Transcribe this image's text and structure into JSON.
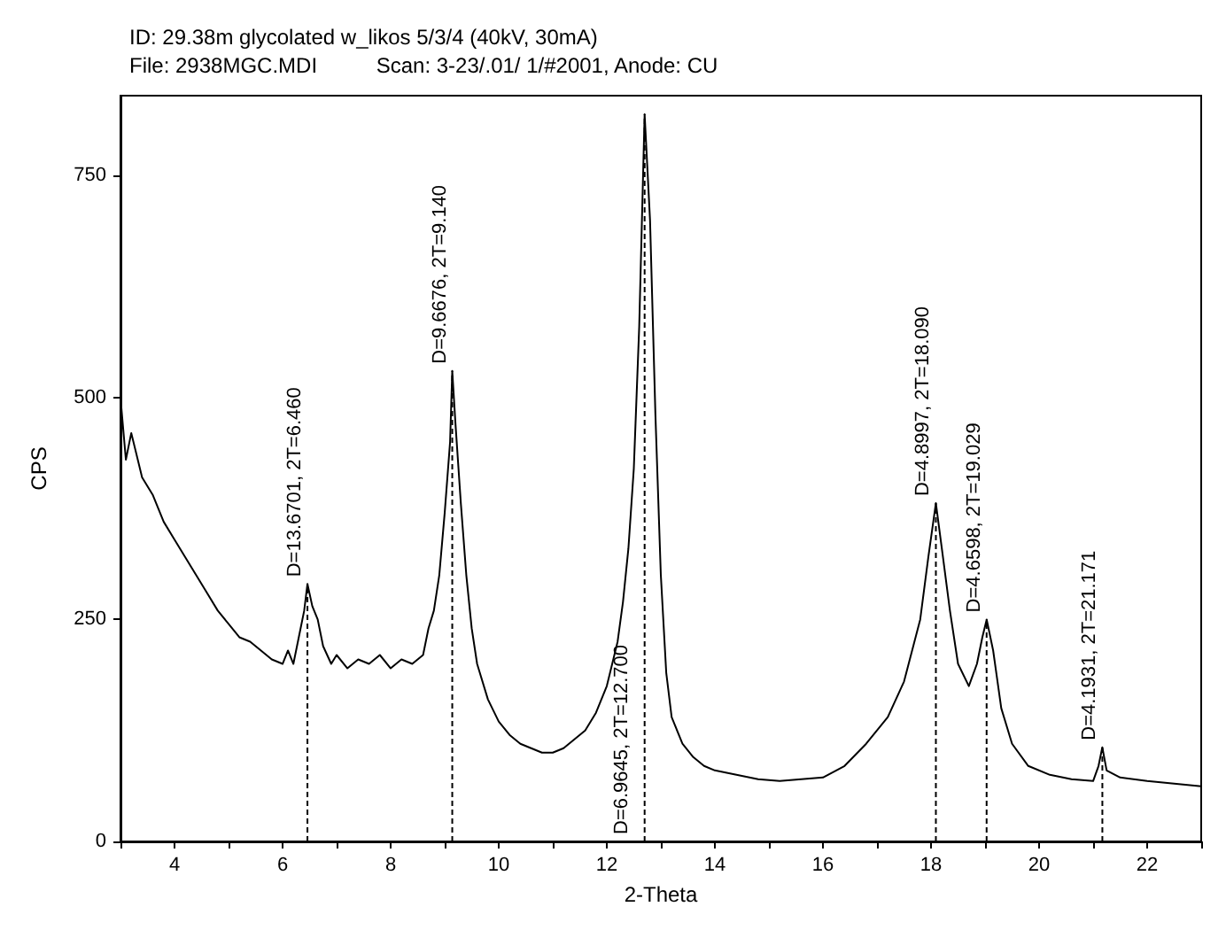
{
  "chart_data": {
    "type": "line",
    "title": "ID: 29.38m glycolated w_likos 5/3/4 (40kV, 30mA)",
    "subtitle": "File: 2938MGC.MDI          Scan: 3-23/.01/ 1/#2001, Anode: CU",
    "xlabel": "2-Theta",
    "ylabel": "CPS",
    "xlim": [
      3,
      23
    ],
    "ylim": [
      0,
      840
    ],
    "xticks": [
      {
        "value": 3,
        "label": null
      },
      4,
      {
        "value": 5,
        "label": null
      },
      6,
      {
        "value": 7,
        "label": null
      },
      8,
      {
        "value": 9,
        "label": null
      },
      10,
      {
        "value": 11,
        "label": null
      },
      12,
      {
        "value": 13,
        "label": null
      },
      14,
      {
        "value": 15,
        "label": null
      },
      16,
      {
        "value": 17,
        "label": null
      },
      18,
      {
        "value": 19,
        "label": null
      },
      20,
      {
        "value": 21,
        "label": null
      },
      22,
      {
        "value": 23,
        "label": null
      }
    ],
    "yticks": [
      0,
      250,
      500,
      750
    ],
    "line_style": "solid",
    "marker": "none",
    "series": [
      {
        "color": "#000000",
        "x": [
          3.0,
          3.1,
          3.2,
          3.4,
          3.6,
          3.8,
          4.0,
          4.2,
          4.4,
          4.6,
          4.8,
          5.0,
          5.2,
          5.4,
          5.6,
          5.8,
          6.0,
          6.1,
          6.2,
          6.3,
          6.4,
          6.46,
          6.55,
          6.65,
          6.75,
          6.9,
          7.0,
          7.2,
          7.4,
          7.6,
          7.8,
          8.0,
          8.2,
          8.4,
          8.6,
          8.7,
          8.8,
          8.9,
          9.0,
          9.1,
          9.14,
          9.2,
          9.3,
          9.4,
          9.5,
          9.6,
          9.8,
          10.0,
          10.2,
          10.4,
          10.6,
          10.8,
          11.0,
          11.2,
          11.4,
          11.6,
          11.8,
          12.0,
          12.2,
          12.3,
          12.4,
          12.5,
          12.6,
          12.7,
          12.8,
          12.9,
          13.0,
          13.1,
          13.2,
          13.4,
          13.6,
          13.8,
          14.0,
          14.4,
          14.8,
          15.2,
          15.6,
          16.0,
          16.4,
          16.8,
          17.2,
          17.5,
          17.8,
          17.95,
          18.09,
          18.2,
          18.35,
          18.5,
          18.7,
          18.85,
          18.95,
          19.03,
          19.15,
          19.3,
          19.5,
          19.8,
          20.2,
          20.6,
          21.0,
          21.1,
          21.17,
          21.25,
          21.5,
          22.0,
          22.5,
          23.0
        ],
        "values": [
          500,
          430,
          460,
          410,
          390,
          360,
          340,
          320,
          300,
          280,
          260,
          245,
          230,
          225,
          215,
          205,
          200,
          215,
          200,
          230,
          260,
          290,
          265,
          250,
          220,
          200,
          210,
          195,
          205,
          200,
          210,
          195,
          205,
          200,
          210,
          240,
          260,
          300,
          370,
          450,
          530,
          470,
          380,
          300,
          240,
          200,
          160,
          135,
          120,
          110,
          105,
          100,
          100,
          105,
          115,
          125,
          145,
          175,
          225,
          270,
          330,
          420,
          580,
          819,
          700,
          480,
          300,
          190,
          140,
          110,
          95,
          85,
          80,
          75,
          70,
          68,
          70,
          72,
          85,
          110,
          140,
          180,
          250,
          320,
          381,
          330,
          260,
          200,
          175,
          200,
          230,
          250,
          215,
          150,
          110,
          85,
          75,
          70,
          68,
          85,
          106,
          80,
          72,
          68,
          65,
          62
        ]
      }
    ],
    "ref_lines": [
      {
        "axis": "x",
        "value": 6.46,
        "label": "D=13.6701, 2T=6.460",
        "color": "#000000",
        "line_style": "dashed"
      },
      {
        "axis": "x",
        "value": 9.14,
        "label": "D=9.6676, 2T=9.140",
        "color": "#000000",
        "line_style": "dashed"
      },
      {
        "axis": "x",
        "value": 12.7,
        "label": "D=6.9645, 2T=12.700",
        "color": "#000000",
        "line_style": "dashed"
      },
      {
        "axis": "x",
        "value": 18.09,
        "label": "D=4.8997, 2T=18.090",
        "color": "#000000",
        "line_style": "dashed"
      },
      {
        "axis": "x",
        "value": 19.029,
        "label": "D=4.6598, 2T=19.029",
        "color": "#000000",
        "line_style": "dashed"
      },
      {
        "axis": "x",
        "value": 21.171,
        "label": "D=4.1931, 2T=21.171",
        "color": "#000000",
        "line_style": "dashed"
      }
    ]
  }
}
